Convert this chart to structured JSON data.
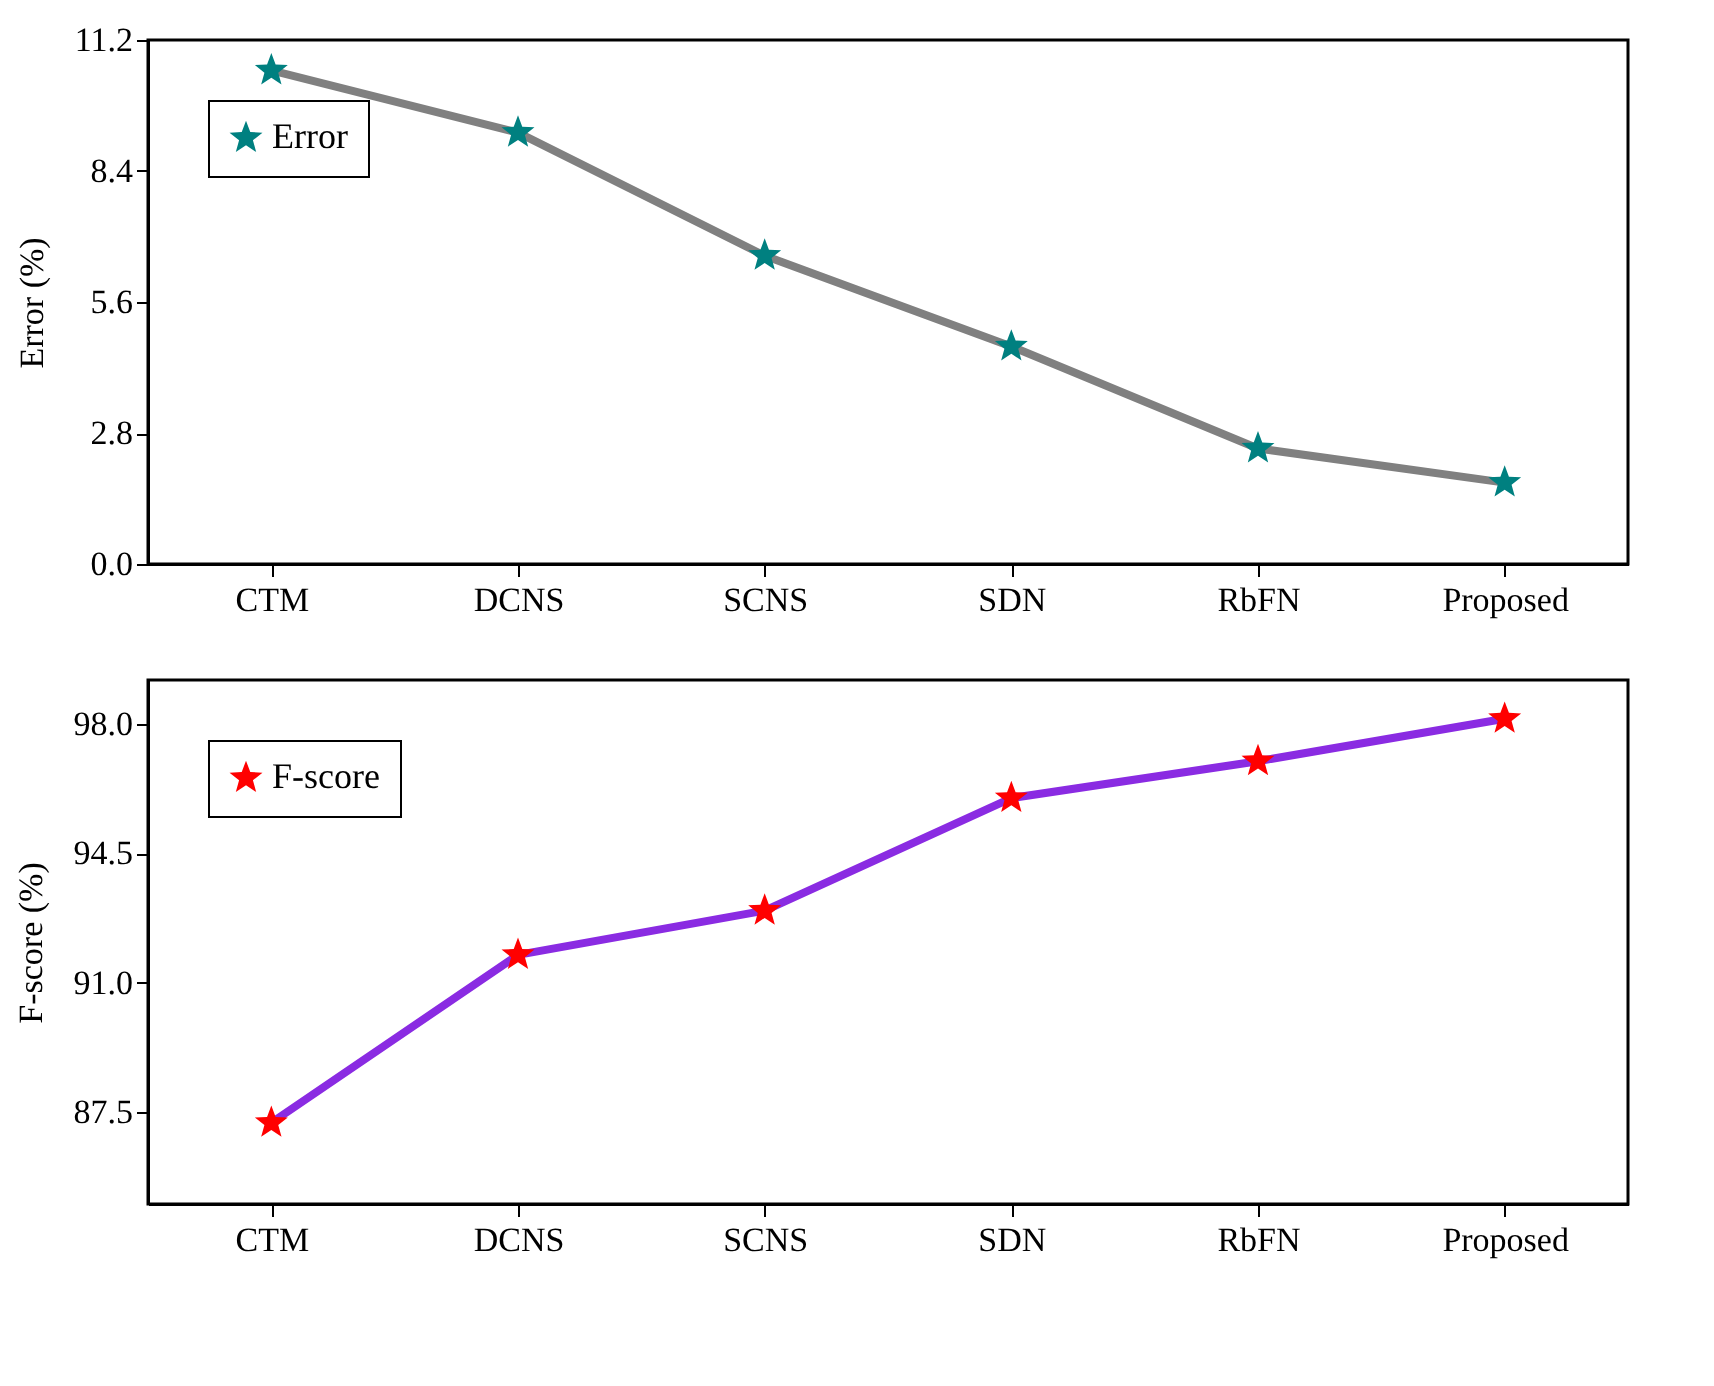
{
  "chart_data": [
    {
      "type": "line",
      "ylabel": "Error (%)",
      "categories": [
        "CTM",
        "DCNS",
        "SCNS",
        "SDN",
        "RbFN",
        "Proposed"
      ],
      "series": [
        {
          "name": "Error",
          "color": "#808080",
          "colors": [
            "#008080",
            "#008080",
            "#008080",
            "#008080",
            "#008080",
            "#008080"
          ],
          "values": [
            10.55,
            9.22,
            6.59,
            4.65,
            2.47,
            1.74
          ]
        }
      ],
      "ylim": [
        0,
        11.2
      ],
      "yticks": [
        {
          "value": 0,
          "label": "0.0"
        },
        2.8,
        5.6,
        8.4,
        11.2
      ],
      "marker": "star",
      "line_style": "solid",
      "legend": "top left",
      "grid": false
    },
    {
      "type": "line",
      "ylabel": "F-score (%)",
      "categories": [
        "CTM",
        "DCNS",
        "SCNS",
        "SDN",
        "RbFN",
        "Proposed"
      ],
      "series": [
        {
          "name": "F-score",
          "color": "#8a2be2",
          "colors": [
            "#ff0000",
            "#ff0000",
            "#ff0000",
            "#ff0000",
            "#ff0000",
            "#ff0000"
          ],
          "values": [
            87.2,
            91.75,
            92.95,
            96.0,
            97.0,
            98.15
          ]
        }
      ],
      "ylim": [
        85.0,
        99.2
      ],
      "yticks": [
        87.5,
        {
          "value": 91,
          "label": "91.0"
        },
        94.5,
        {
          "value": 98,
          "label": "98.0"
        }
      ],
      "marker": "star",
      "line_style": "solid",
      "legend": "top left",
      "grid": false
    }
  ]
}
